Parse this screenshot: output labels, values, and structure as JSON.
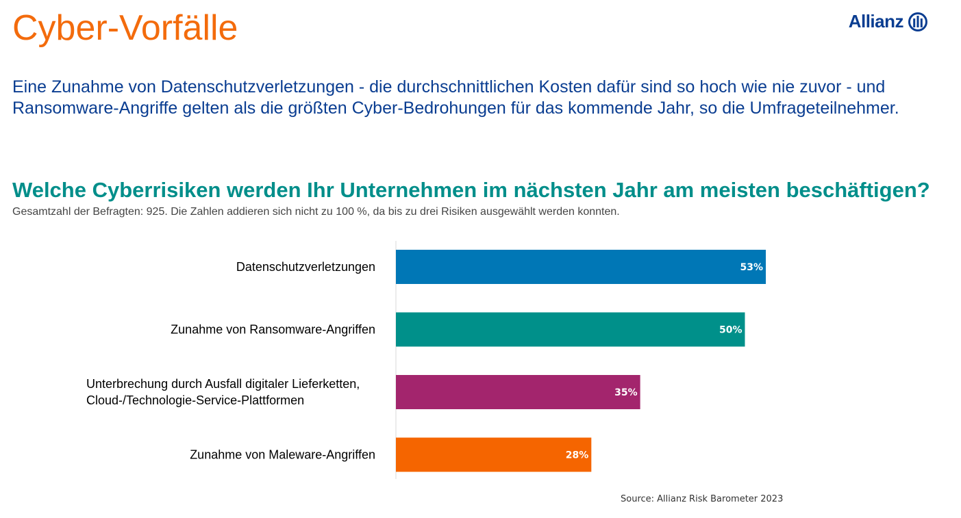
{
  "page": {
    "title": "Cyber-Vorfälle",
    "intro": "Eine Zunahme von Datenschutzverletzungen - die durchschnittlichen Kosten dafür sind so hoch wie nie zuvor - und Ransomware-Angriffe gelten als die größten Cyber-Bedrohungen für das kommende Jahr, so die Umfrageteilnehmer.",
    "source": "Source: Allianz Risk Barometer 2023"
  },
  "logo": {
    "text": "Allianz",
    "icon": "allianz-eagle-emblem-icon",
    "color": "#0a3d91"
  },
  "chart_data": {
    "type": "bar",
    "orientation": "horizontal",
    "title": "Welche Cyberrisiken werden Ihr Unternehmen im nächsten Jahr am meisten beschäftigen?",
    "subtitle": "Gesamtzahl der Befragten: 925. Die Zahlen addieren sich nicht zu 100 %, da bis zu drei Risiken ausgewählt werden konnten.",
    "categories": [
      [
        "Datenschutzverletzungen"
      ],
      [
        "Zunahme von Ransomware-Angriffen"
      ],
      [
        "Unterbrechung durch Ausfall digitaler Lieferketten,",
        "Cloud-/Technologie-Service-Plattformen"
      ],
      [
        "Zunahme von Maleware-Angriffen"
      ]
    ],
    "values": [
      53,
      50,
      35,
      28
    ],
    "data_labels": [
      "53%",
      "50%",
      "35%",
      "28%"
    ],
    "colors": [
      "#0077b6",
      "#00908a",
      "#a3256d",
      "#f56500"
    ],
    "xlim": [
      0,
      100
    ],
    "grid": false,
    "legend": "none"
  },
  "colors": {
    "title": "#f36b0c",
    "intro": "#0a3d91",
    "question": "#008e8a"
  }
}
